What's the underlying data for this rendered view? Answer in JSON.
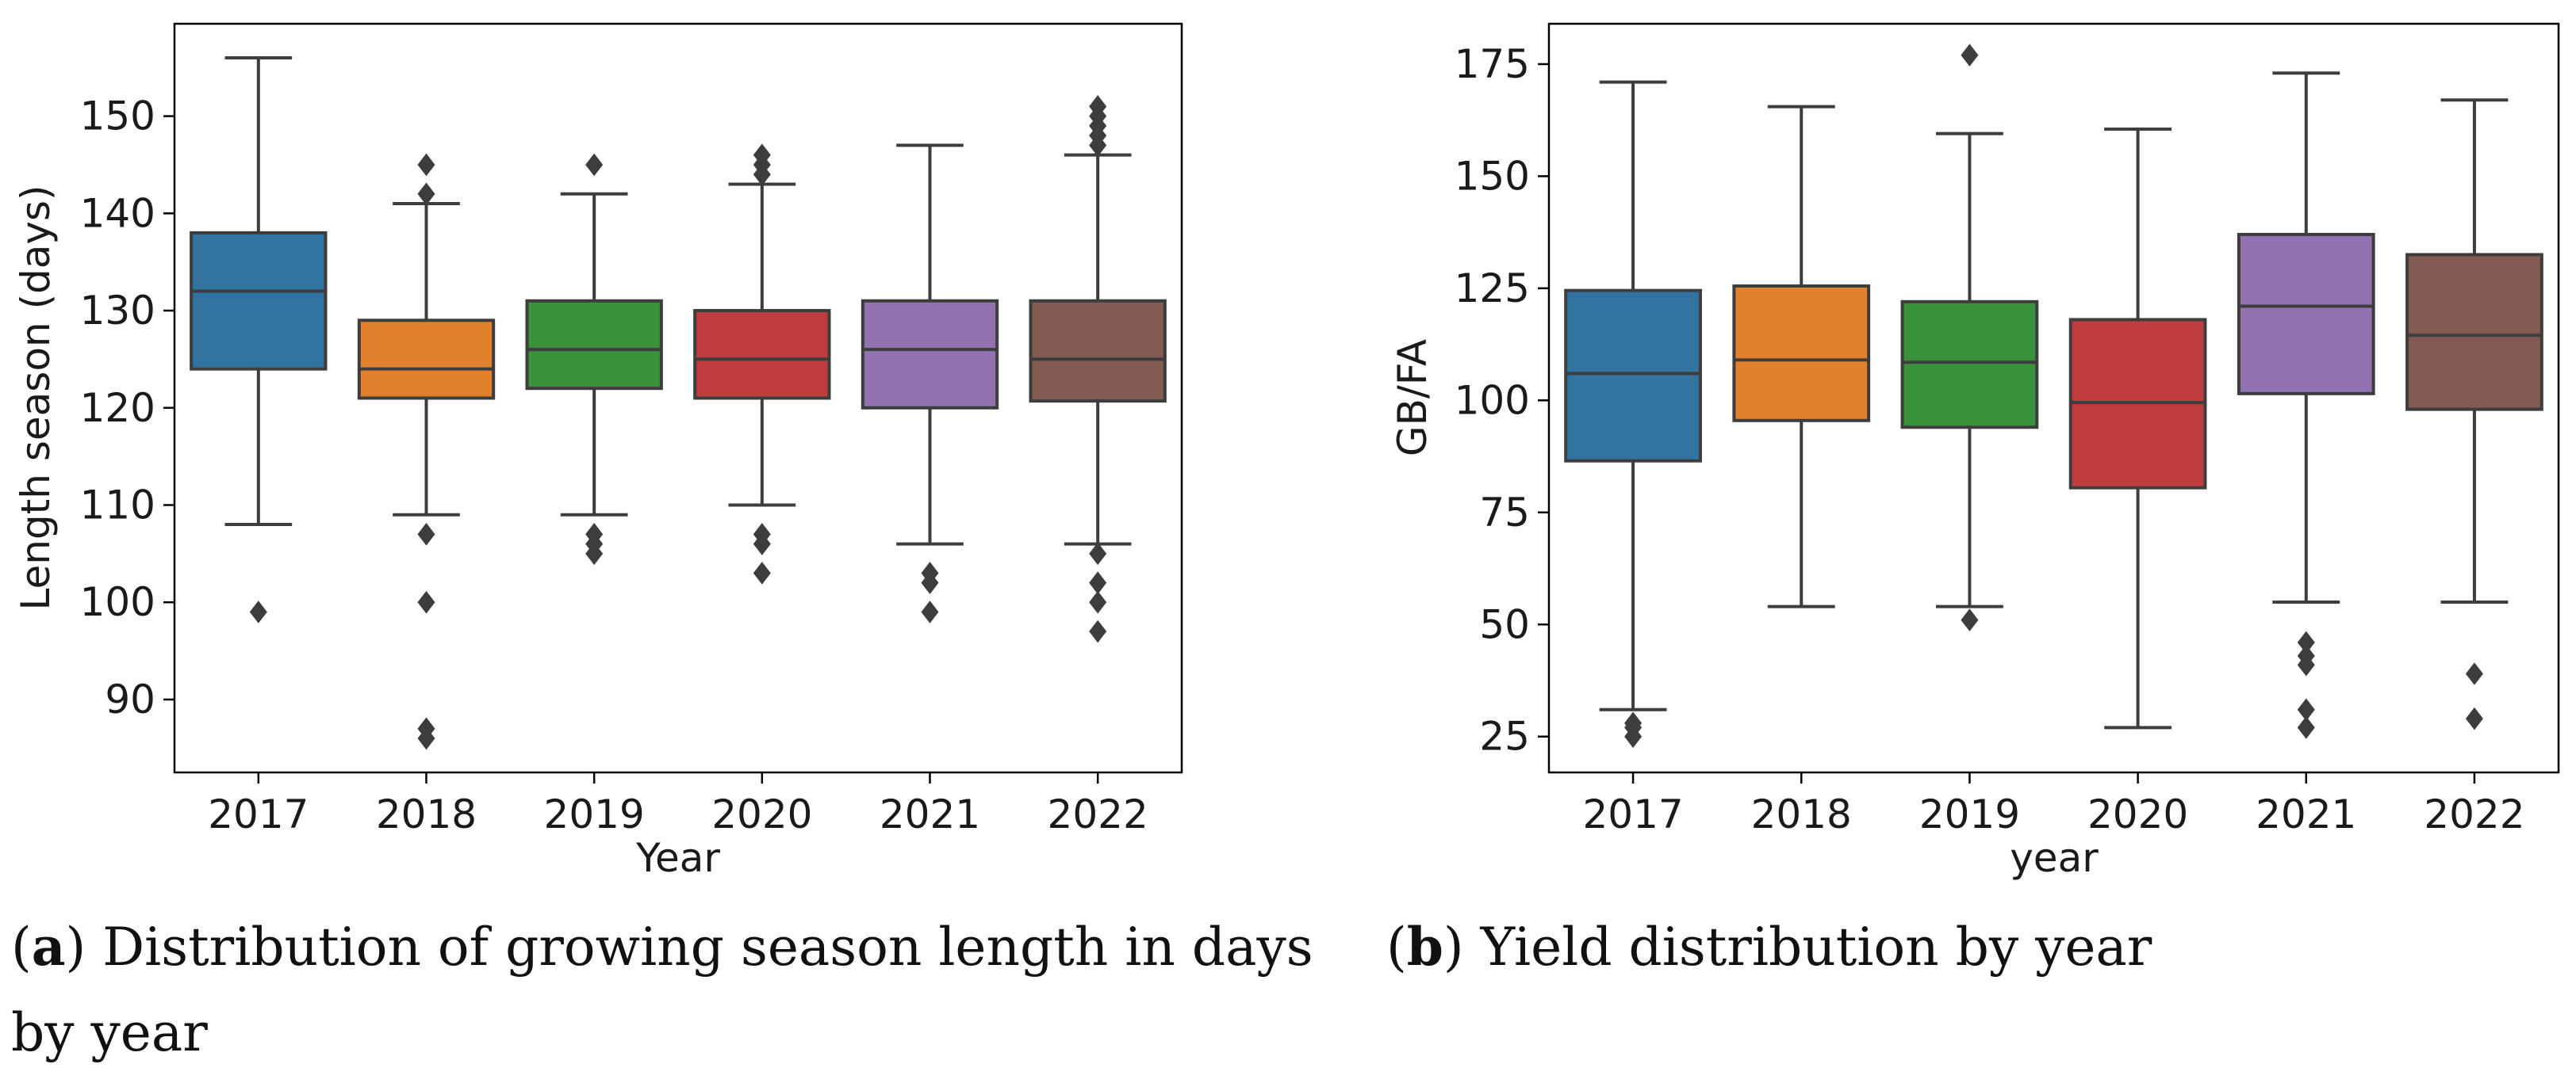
{
  "chart_data": [
    {
      "type": "box",
      "caption_letter": "a",
      "caption_text": "Distribution of growing season length in days",
      "caption_text_line2": "by year",
      "xlabel": "Year",
      "ylabel": "Length season (days)",
      "ylim": [
        82.5,
        159.5
      ],
      "yticks": [
        90,
        100,
        110,
        120,
        130,
        140,
        150
      ],
      "categories": [
        "2017",
        "2018",
        "2019",
        "2020",
        "2021",
        "2022"
      ],
      "colors": [
        "#3274a1",
        "#e1812c",
        "#3a923a",
        "#c03d3e",
        "#9372b2",
        "#845b53"
      ],
      "boxes": [
        {
          "whislo": 108,
          "q1": 124,
          "med": 132,
          "q3": 138,
          "whishi": 156,
          "fliers": [
            99
          ]
        },
        {
          "whislo": 109,
          "q1": 121,
          "med": 124,
          "q3": 129,
          "whishi": 141,
          "fliers": [
            145,
            142,
            107,
            100,
            87,
            86
          ]
        },
        {
          "whislo": 109,
          "q1": 122,
          "med": 126,
          "q3": 131,
          "whishi": 142,
          "fliers": [
            145,
            107,
            106,
            105
          ]
        },
        {
          "whislo": 110,
          "q1": 121,
          "med": 125,
          "q3": 130,
          "whishi": 143,
          "fliers": [
            146,
            145,
            144,
            107,
            106,
            103
          ]
        },
        {
          "whislo": 106,
          "q1": 120,
          "med": 126,
          "q3": 131,
          "whishi": 147,
          "fliers": [
            103,
            102,
            99
          ]
        },
        {
          "whislo": 106,
          "q1": 120.7,
          "med": 125,
          "q3": 131,
          "whishi": 146,
          "fliers": [
            151,
            150,
            149,
            148,
            147,
            105,
            102,
            100,
            97
          ]
        }
      ]
    },
    {
      "type": "box",
      "caption_letter": "b",
      "caption_text": "Yield distribution by year",
      "xlabel": "year",
      "ylabel": "GB/FA",
      "ylim": [
        17,
        184
      ],
      "yticks": [
        25,
        50,
        75,
        100,
        125,
        150,
        175
      ],
      "categories": [
        "2017",
        "2018",
        "2019",
        "2020",
        "2021",
        "2022"
      ],
      "colors": [
        "#3274a1",
        "#e1812c",
        "#3a923a",
        "#c03d3e",
        "#9372b2",
        "#845b53"
      ],
      "boxes": [
        {
          "whislo": 31,
          "q1": 86.5,
          "med": 106,
          "q3": 124.5,
          "whishi": 171,
          "fliers": [
            28,
            27,
            25
          ]
        },
        {
          "whislo": 54,
          "q1": 95.5,
          "med": 109,
          "q3": 125.5,
          "whishi": 165.5,
          "fliers": []
        },
        {
          "whislo": 54,
          "q1": 94,
          "med": 108.5,
          "q3": 122,
          "whishi": 159.5,
          "fliers": [
            177,
            51
          ]
        },
        {
          "whislo": 27,
          "q1": 80.5,
          "med": 99.5,
          "q3": 118,
          "whishi": 160.5,
          "fliers": []
        },
        {
          "whislo": 55,
          "q1": 101.5,
          "med": 121,
          "q3": 137,
          "whishi": 173,
          "fliers": [
            46,
            43,
            41,
            31,
            27
          ]
        },
        {
          "whislo": 55,
          "q1": 98,
          "med": 114.5,
          "q3": 132.5,
          "whishi": 167,
          "fliers": [
            39,
            29
          ]
        }
      ]
    }
  ]
}
